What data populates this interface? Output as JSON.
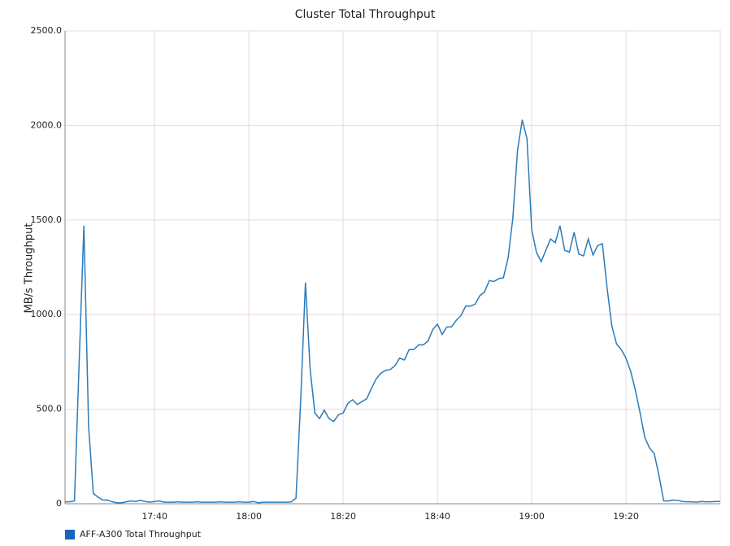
{
  "chart_data": {
    "type": "line",
    "title": "Cluster Total Throughput",
    "y_label": "MB/s Throughput",
    "x": [
      "17:21",
      "17:22",
      "17:23",
      "17:24",
      "17:25",
      "17:26",
      "17:27",
      "17:28",
      "17:29",
      "17:30",
      "17:31",
      "17:32",
      "17:33",
      "17:34",
      "17:35",
      "17:36",
      "17:37",
      "17:38",
      "17:39",
      "17:40",
      "17:41",
      "17:42",
      "17:43",
      "17:44",
      "17:45",
      "17:46",
      "17:47",
      "17:48",
      "17:49",
      "17:50",
      "17:51",
      "17:52",
      "17:53",
      "17:54",
      "17:55",
      "17:56",
      "17:57",
      "17:58",
      "17:59",
      "18:00",
      "18:01",
      "18:02",
      "18:03",
      "18:04",
      "18:05",
      "18:06",
      "18:07",
      "18:08",
      "18:09",
      "18:10",
      "18:11",
      "18:12",
      "18:13",
      "18:14",
      "18:15",
      "18:16",
      "18:17",
      "18:18",
      "18:19",
      "18:20",
      "18:21",
      "18:22",
      "18:23",
      "18:24",
      "18:25",
      "18:26",
      "18:27",
      "18:28",
      "18:29",
      "18:30",
      "18:31",
      "18:32",
      "18:33",
      "18:34",
      "18:35",
      "18:36",
      "18:37",
      "18:38",
      "18:39",
      "18:40",
      "18:41",
      "18:42",
      "18:43",
      "18:44",
      "18:45",
      "18:46",
      "18:47",
      "18:48",
      "18:49",
      "18:50",
      "18:51",
      "18:52",
      "18:53",
      "18:54",
      "18:55",
      "18:56",
      "18:57",
      "18:58",
      "18:59",
      "19:00",
      "19:01",
      "19:02",
      "19:03",
      "19:04",
      "19:05",
      "19:06",
      "19:07",
      "19:08",
      "19:09",
      "19:10",
      "19:11",
      "19:12",
      "19:13",
      "19:14",
      "19:15",
      "19:16",
      "19:17",
      "19:18",
      "19:19",
      "19:20",
      "19:21",
      "19:22",
      "19:23",
      "19:24",
      "19:25",
      "19:26",
      "19:27",
      "19:28",
      "19:29",
      "19:30",
      "19:31",
      "19:32",
      "19:33",
      "19:34",
      "19:35",
      "19:36",
      "19:37",
      "19:38",
      "19:39",
      "19:40"
    ],
    "series": [
      {
        "name": "AFF-A300 Total Throughput",
        "color": "#2b7bb9",
        "legend_color": "#1565c0",
        "values": [
          10,
          10,
          15,
          750,
          1470,
          410,
          55,
          35,
          20,
          20,
          10,
          5,
          5,
          10,
          15,
          12,
          18,
          12,
          8,
          12,
          15,
          8,
          8,
          8,
          10,
          8,
          8,
          8,
          10,
          8,
          8,
          8,
          8,
          10,
          8,
          8,
          8,
          10,
          8,
          8,
          12,
          5,
          8,
          8,
          8,
          8,
          8,
          8,
          10,
          30,
          550,
          1170,
          710,
          480,
          450,
          495,
          450,
          435,
          470,
          480,
          530,
          550,
          525,
          540,
          555,
          610,
          660,
          690,
          705,
          710,
          730,
          770,
          760,
          815,
          815,
          840,
          840,
          860,
          920,
          950,
          895,
          935,
          935,
          970,
          995,
          1045,
          1045,
          1055,
          1100,
          1120,
          1180,
          1175,
          1190,
          1195,
          1300,
          1510,
          1870,
          2030,
          1930,
          1450,
          1330,
          1280,
          1340,
          1400,
          1380,
          1470,
          1340,
          1330,
          1435,
          1320,
          1310,
          1400,
          1315,
          1365,
          1375,
          1140,
          940,
          845,
          815,
          770,
          700,
          600,
          480,
          350,
          295,
          265,
          150,
          15,
          15,
          20,
          18,
          12,
          10,
          10,
          8,
          12,
          10,
          10,
          12,
          12
        ]
      }
    ],
    "xlim": [
      "17:21",
      "19:40"
    ],
    "xticks": [
      "17:40",
      "18:00",
      "18:20",
      "18:40",
      "19:00",
      "19:20"
    ],
    "ylim": [
      0,
      2500
    ],
    "yticks": [
      0,
      {
        "value": 500,
        "label": "500.0"
      },
      {
        "value": 1000,
        "label": "1000.0"
      },
      {
        "value": 1500,
        "label": "1500.0"
      },
      {
        "value": 2000,
        "label": "2000.0"
      },
      {
        "value": 2500,
        "label": "2500.0"
      }
    ],
    "grid": true,
    "legend": "bottom-left"
  }
}
